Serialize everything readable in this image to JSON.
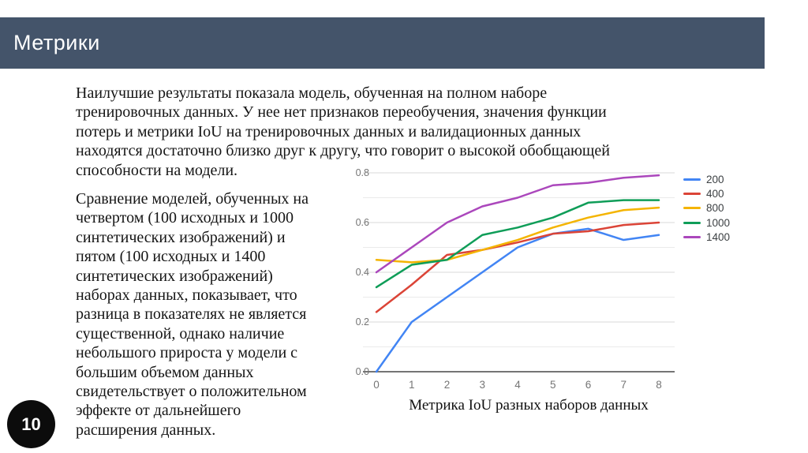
{
  "slide": {
    "title": "Метрики",
    "page_number": "10"
  },
  "body": {
    "paragraph1": "Наилучшие результаты показала модель, обученная на полном наборе\nтренировочных данных. У нее нет признаков переобучения, значения функции\nпотерь и метрики IoU на тренировочных данных и валидационных данных\nнаходятся достаточно близко друг к другу, что говорит о высокой обобщающей\nспособности на модели.",
    "paragraph2": "Сравнение моделей, обученных на\nчетвертом (100 исходных и 1000\nсинтетических изображений) и\nпятом (100 исходных и 1400\nсинтетических изображений)\nнаборах данных, показывает, что\nразница в показателях не является\nсущественной, однако наличие\nнебольшого прироста у модели с\nбольшим объемом данных\nсвидетельствует о положительном\nэффекте от дальнейшего\nрасширения данных."
  },
  "chart_data": {
    "type": "line",
    "title": "Метрика IoU разных наборов данных",
    "x": [
      0,
      1,
      2,
      3,
      4,
      5,
      6,
      7,
      8
    ],
    "series": [
      {
        "name": "200",
        "color": "#4285F4",
        "values": [
          0.0,
          0.2,
          0.3,
          0.4,
          0.5,
          0.555,
          0.575,
          0.53,
          0.55
        ]
      },
      {
        "name": "400",
        "color": "#DB4437",
        "values": [
          0.24,
          0.35,
          0.47,
          0.49,
          0.52,
          0.555,
          0.565,
          0.59,
          0.6
        ]
      },
      {
        "name": "800",
        "color": "#F4B400",
        "values": [
          0.45,
          0.44,
          0.45,
          0.49,
          0.53,
          0.58,
          0.62,
          0.65,
          0.66
        ]
      },
      {
        "name": "1000",
        "color": "#0F9D58",
        "values": [
          0.34,
          0.43,
          0.45,
          0.55,
          0.58,
          0.62,
          0.68,
          0.69,
          0.69
        ]
      },
      {
        "name": "1400",
        "color": "#AB47BC",
        "values": [
          0.4,
          0.5,
          0.6,
          0.665,
          0.7,
          0.75,
          0.76,
          0.78,
          0.79
        ]
      }
    ],
    "ylim": [
      0.0,
      0.8
    ],
    "yticks": [
      0.0,
      0.2,
      0.4,
      0.6,
      0.8
    ],
    "ytick_labels": [
      "0.0",
      "0.2",
      "0.4",
      "0.6",
      "0.8"
    ],
    "xtick_labels": [
      "0",
      "1",
      "2",
      "3",
      "4",
      "5",
      "6",
      "7",
      "8"
    ],
    "grid": true,
    "legend_position": "right",
    "colors": {
      "axis_label": "#757575",
      "grid_minor": "#ebebeb",
      "grid_major": "#d9d9d9",
      "baseline": "#757575"
    }
  },
  "theme": {
    "header_bg": "#44546a",
    "badge_bg": "#0c0c0c"
  }
}
